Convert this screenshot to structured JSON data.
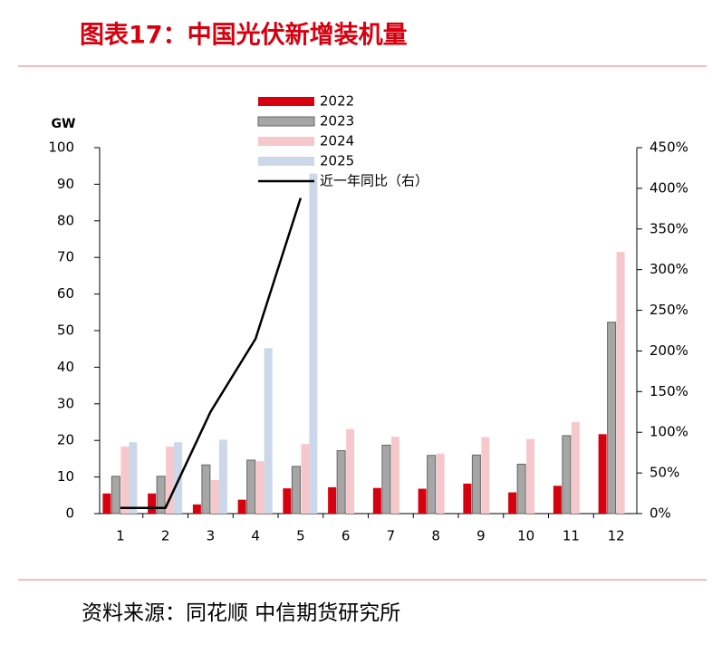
{
  "header": {
    "title": "图表17：中国光伏新增装机量"
  },
  "chart_data": {
    "type": "bar",
    "y_label": "GW",
    "categories": [
      "1",
      "2",
      "3",
      "4",
      "5",
      "6",
      "7",
      "8",
      "9",
      "10",
      "11",
      "12"
    ],
    "series": [
      {
        "name": "2022",
        "color": "#d7000f",
        "values": [
          5.5,
          5.5,
          2.5,
          3.8,
          6.9,
          7.2,
          7.0,
          6.8,
          8.2,
          5.8,
          7.6,
          21.7
        ]
      },
      {
        "name": "2023",
        "color": "#a6a6a6",
        "values": [
          10.2,
          10.2,
          13.3,
          14.6,
          12.9,
          17.2,
          18.7,
          15.9,
          16.0,
          13.5,
          21.3,
          52.3
        ]
      },
      {
        "name": "2024",
        "color": "#f6c8cb",
        "values": [
          18.3,
          18.3,
          9.2,
          14.3,
          19.0,
          23.1,
          21.0,
          16.4,
          20.9,
          20.4,
          25.0,
          71.5
        ]
      },
      {
        "name": "2025",
        "color": "#ccd8ea",
        "values": [
          19.5,
          19.5,
          20.2,
          45.2,
          92.9,
          null,
          null,
          null,
          null,
          null,
          null,
          null
        ]
      },
      {
        "name": "近一年同比（右）",
        "type": "line",
        "axis": "y2",
        "color": "#000000",
        "values": [
          7,
          7,
          125,
          215,
          388,
          null,
          null,
          null,
          null,
          null,
          null,
          null
        ]
      }
    ],
    "ylim": [
      0,
      100
    ],
    "yticks": [
      0,
      10,
      20,
      30,
      40,
      50,
      60,
      70,
      80,
      90,
      100
    ],
    "y2lim": [
      0,
      450
    ],
    "y2ticks": [
      {
        "value": 0,
        "label": "0%"
      },
      {
        "value": 50,
        "label": "50%"
      },
      {
        "value": 100,
        "label": "100%"
      },
      {
        "value": 150,
        "label": "150%"
      },
      {
        "value": 200,
        "label": "200%"
      },
      {
        "value": 250,
        "label": "250%"
      },
      {
        "value": 300,
        "label": "300%"
      },
      {
        "value": 350,
        "label": "350%"
      },
      {
        "value": 400,
        "label": "400%"
      },
      {
        "value": 450,
        "label": "450%"
      }
    ]
  },
  "footer": {
    "source": "资料来源：同花顺 中信期货研究所"
  }
}
